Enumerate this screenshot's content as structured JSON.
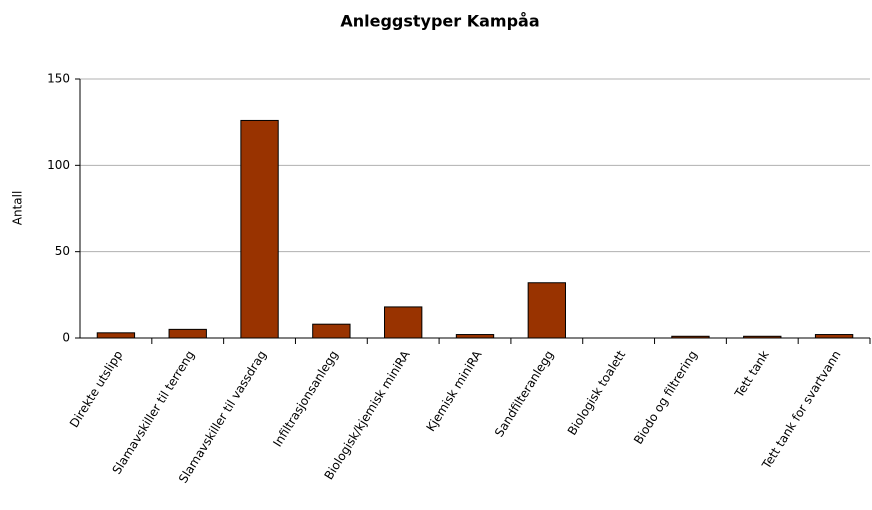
{
  "chart_data": {
    "type": "bar",
    "title": "Anleggstyper Kampåa",
    "y_label": "Antall",
    "categories": [
      "Direkte utslipp",
      "Slamavskiller til terreng",
      "Slamavskiller til vassdrag",
      "Infiltrasjonsanlegg",
      "Biologisk/kjemisk miniRA",
      "Kjemisk miniRA",
      "Sandfilteranlegg",
      "Biologisk toalett",
      "Biodo og filtrering",
      "Tett tank",
      "Tett tank for svartvann"
    ],
    "values": [
      3,
      5,
      126,
      8,
      18,
      2,
      32,
      0,
      1,
      1,
      2
    ],
    "color": "#993300",
    "ylim": [
      0,
      150
    ],
    "yticks": [
      0,
      50,
      100,
      150
    ],
    "grid": true
  }
}
